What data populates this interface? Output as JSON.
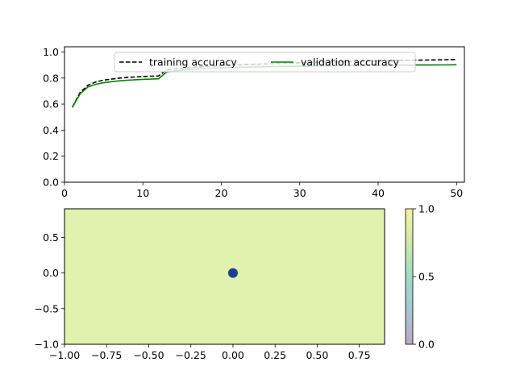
{
  "chart_data": [
    {
      "type": "line",
      "title": "",
      "xlabel": "",
      "ylabel": "",
      "xlim": [
        0,
        51
      ],
      "ylim": [
        0,
        1.04
      ],
      "xticks": [
        "0",
        "10",
        "20",
        "30",
        "40",
        "50"
      ],
      "yticks": [
        "0.0",
        "0.2",
        "0.4",
        "0.6",
        "0.8",
        "1.0"
      ],
      "legend": {
        "placement": "top-right"
      },
      "x": [
        1,
        2,
        3,
        4,
        5,
        6,
        7,
        8,
        9,
        10,
        11,
        12,
        13,
        14,
        15,
        16,
        17,
        18,
        19,
        20,
        21,
        22,
        23,
        24,
        25,
        26,
        27,
        28,
        29,
        30,
        31,
        32,
        33,
        34,
        35,
        36,
        37,
        38,
        39,
        40,
        41,
        42,
        43,
        44,
        45,
        46,
        47,
        48,
        49,
        50
      ],
      "series": [
        {
          "name": "training accuracy",
          "style": "dashed",
          "color": "#000000",
          "values": [
            0.575,
            0.69,
            0.745,
            0.77,
            0.784,
            0.792,
            0.799,
            0.804,
            0.808,
            0.811,
            0.814,
            0.816,
            0.862,
            0.87,
            0.876,
            0.881,
            0.885,
            0.889,
            0.892,
            0.895,
            0.898,
            0.9,
            0.903,
            0.905,
            0.907,
            0.909,
            0.911,
            0.913,
            0.915,
            0.917,
            0.919,
            0.921,
            0.922,
            0.924,
            0.925,
            0.927,
            0.928,
            0.929,
            0.931,
            0.932,
            0.933,
            0.934,
            0.935,
            0.936,
            0.937,
            0.938,
            0.939,
            0.94,
            0.941,
            0.942
          ]
        },
        {
          "name": "validation accuracy",
          "style": "solid",
          "color": "#008000",
          "values": [
            0.575,
            0.68,
            0.732,
            0.752,
            0.764,
            0.772,
            0.778,
            0.783,
            0.787,
            0.79,
            0.792,
            0.794,
            0.845,
            0.855,
            0.861,
            0.866,
            0.87,
            0.873,
            0.876,
            0.878,
            0.88,
            0.882,
            0.884,
            0.885,
            0.886,
            0.887,
            0.888,
            0.889,
            0.89,
            0.891,
            0.892,
            0.893,
            0.893,
            0.894,
            0.895,
            0.895,
            0.896,
            0.896,
            0.897,
            0.897,
            0.898,
            0.898,
            0.899,
            0.899,
            0.9,
            0.9,
            0.9,
            0.901,
            0.901,
            0.902
          ]
        }
      ]
    },
    {
      "type": "heatmap",
      "title": "",
      "xlabel": "",
      "ylabel": "",
      "xlim": [
        -1.0,
        0.9
      ],
      "ylim": [
        -1.0,
        0.9
      ],
      "xticks": [
        "−1.00",
        "−0.75",
        "−0.50",
        "−0.25",
        "0.00",
        "0.25",
        "0.50",
        "0.75"
      ],
      "yticks": [
        "−1.0",
        "−0.5",
        "0.0",
        "0.5"
      ],
      "fill_value": 1.0,
      "fill_color": "#e0f2ae",
      "points": [
        {
          "x": 0.0,
          "y": 0.0,
          "color": "#1f3f8f"
        }
      ],
      "colorbar": {
        "range": [
          0.0,
          1.0
        ],
        "ticks": [
          "0.0",
          "0.5",
          "1.0"
        ],
        "colors": [
          "#b9a9c4",
          "#a6c6cf",
          "#9fdcc8",
          "#cde9a8",
          "#f5f3a0"
        ]
      }
    }
  ]
}
